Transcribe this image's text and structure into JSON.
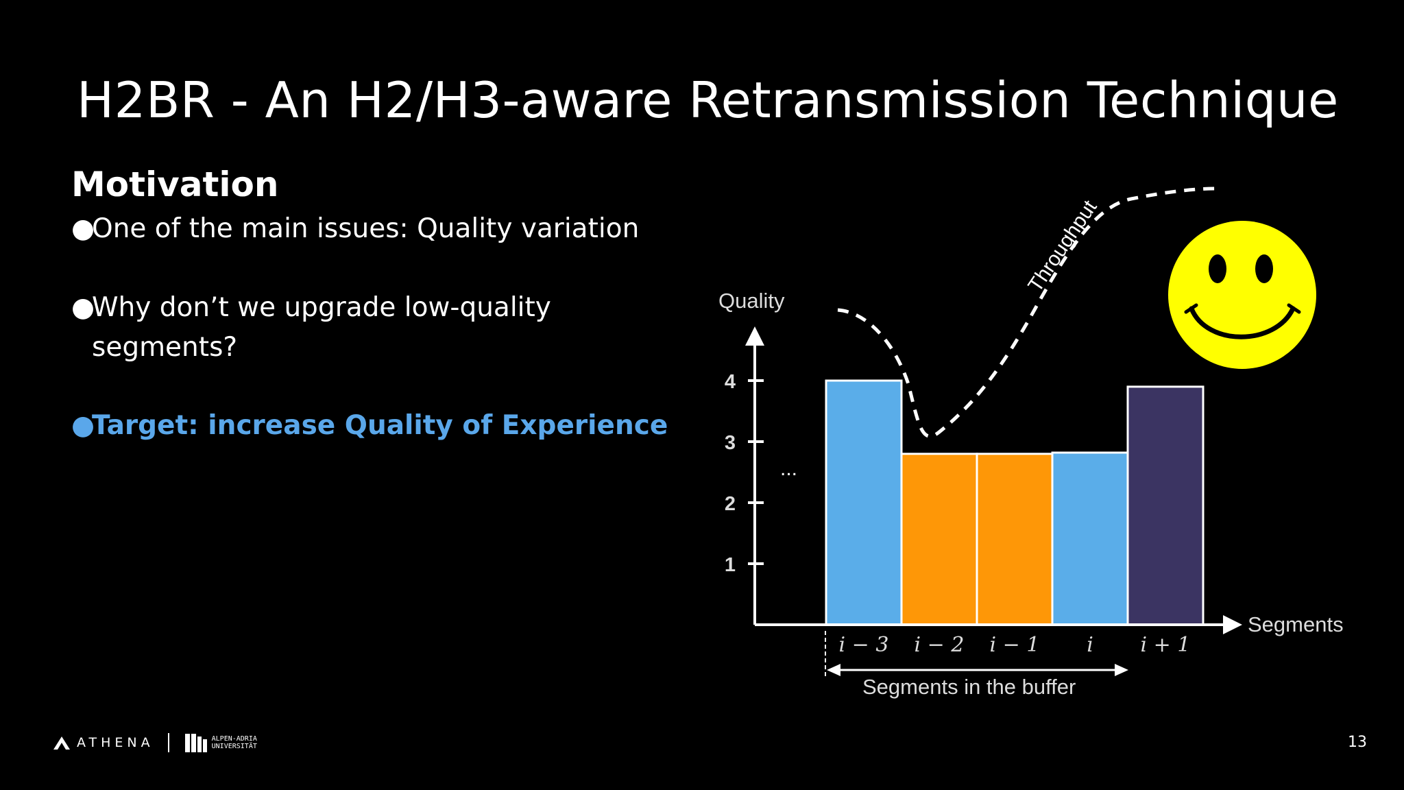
{
  "slide": {
    "title": "H2BR - An H2/H3-aware Retransmission Technique",
    "section": "Motivation",
    "bullets": [
      {
        "marker": "●",
        "line1": "One of the main issues: Quality variation"
      },
      {
        "marker": "●",
        "line1": "Why don’t we upgrade low-quality",
        "line2": "segments?"
      },
      {
        "marker": "●",
        "line1": "Target: increase Quality of Experience"
      }
    ],
    "page_number": "13",
    "footer": {
      "org": "ATHENA",
      "university": [
        "ALPEN-ADRIA",
        "UNIVERSITÄT"
      ]
    }
  },
  "chart_data": {
    "type": "bar",
    "ylabel": "Quality",
    "xlabel": "Segments",
    "yticks": [
      "1",
      "2",
      "3",
      "4"
    ],
    "ellipsis": "...",
    "categories": [
      "i − 3",
      "i − 2",
      "i − 1",
      "i",
      "i + 1"
    ],
    "values": [
      4.0,
      2.8,
      2.8,
      2.82,
      3.9
    ],
    "bar_colors": [
      "#5aade9",
      "#fe9707",
      "#fe9707",
      "#5aade9",
      "#3b3462"
    ],
    "throughput_label": "Throughput",
    "buffer_label": "Segments in the buffer",
    "buffer_range": [
      "i − 3",
      "i"
    ],
    "smiley": "happy-face",
    "colors": {
      "bar_outline": "#ffffff",
      "axis": "#ffffff",
      "smiley_fill": "#ffff00"
    }
  }
}
